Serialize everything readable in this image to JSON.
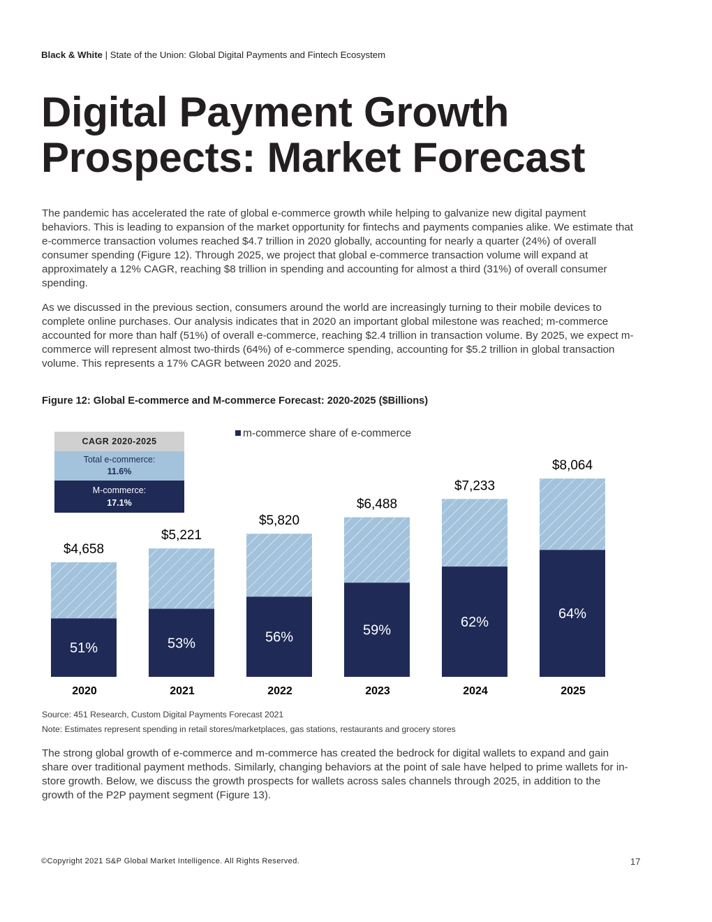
{
  "header": {
    "brand": "Black & White",
    "separator": " | ",
    "report_title": "State of the Union: Global Digital Payments and Fintech Ecosystem"
  },
  "title": {
    "line1": "Digital Payment Growth",
    "line2": "Prospects: Market Forecast"
  },
  "body": {
    "paragraph1": "The pandemic has accelerated the rate of global e-commerce growth while helping to galvanize new digital payment behaviors. This is leading to expansion of the market opportunity for fintechs and payments companies alike. We estimate that e-commerce transaction volumes reached $4.7 trillion in 2020 globally, accounting for nearly a quarter (24%) of overall consumer spending (Figure 12). Through 2025, we project that global e-commerce transaction volume will expand at approximately a 12% CAGR, reaching $8 trillion in spending and accounting for almost a third (31%) of overall consumer spending.",
    "paragraph2": "As we discussed in the previous section, consumers around the world are increasingly turning to their mobile devices to complete online purchases. Our analysis indicates that in 2020 an important global milestone was reached; m-commerce accounted for more than half (51%) of overall e-commerce, reaching $2.4 trillion in transaction volume. By 2025, we expect m-commerce will represent almost two-thirds (64%) of e-commerce spending, accounting for $5.2 trillion in global transaction volume. This represents a 17% CAGR between 2020 and 2025.",
    "paragraph3": "The strong global growth of e-commerce and m-commerce has created the bedrock for digital wallets to expand and gain share over traditional payment methods. Similarly, changing behaviors at the point of sale have helped to prime wallets for in-store growth. Below, we discuss the growth prospects for wallets across sales channels through 2025, in addition to the growth of the P2P payment segment (Figure 13)."
  },
  "figure": {
    "caption": "Figure 12: Global E-commerce and M-commerce Forecast: 2020-2025 ($Billions)",
    "source": "Source: 451 Research, Custom Digital Payments Forecast 2021",
    "note": "Note: Estimates represent spending in retail stores/marketplaces, gas stations, restaurants and grocery stores"
  },
  "cagr_box": {
    "heading": "CAGR 2020-2025",
    "total_label": "Total e-commerce:",
    "total_value": "11.6%",
    "mcommerce_label": "M-commerce:",
    "mcommerce_value": "17.1%"
  },
  "chart_data": {
    "type": "bar",
    "stacked": true,
    "title": "Global E-commerce and M-commerce Forecast: 2020-2025 ($Billions)",
    "categories": [
      "2020",
      "2021",
      "2022",
      "2023",
      "2024",
      "2025"
    ],
    "totals": [
      4658,
      5221,
      5820,
      6488,
      7233,
      8064
    ],
    "total_labels": [
      "$4,658",
      "$5,221",
      "$5,820",
      "$6,488",
      "$7,233",
      "$8,064"
    ],
    "mcommerce_share_pct": [
      51,
      53,
      56,
      59,
      62,
      64
    ],
    "share_labels": [
      "51%",
      "53%",
      "56%",
      "59%",
      "62%",
      "64%"
    ],
    "legend": "m-commerce share of e-commerce",
    "ylim": [
      0,
      8500
    ],
    "colors": {
      "mcommerce": "#1f2a56",
      "ecommerce": "#a3c3dc",
      "hatch": "#ffffff"
    }
  },
  "footer": {
    "copyright": "©Copyright 2021 S&P Global Market Intelligence. All Rights Reserved.",
    "page_number": "17"
  }
}
